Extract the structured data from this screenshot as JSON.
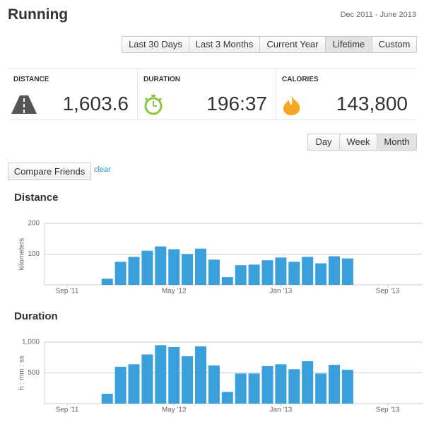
{
  "header": {
    "title": "Running",
    "date_range": "Dec 2011 - June 2013"
  },
  "range_buttons": [
    "Last 30 Days",
    "Last 3 Months",
    "Current Year",
    "Lifetime",
    "Custom"
  ],
  "selected_range": 3,
  "stats": [
    {
      "label": "DISTANCE",
      "value": "1,603.6"
    },
    {
      "label": "DURATION",
      "value": "196:37"
    },
    {
      "label": "CALORIES",
      "value": "143,800"
    }
  ],
  "interval_buttons": [
    "Day",
    "Week",
    "Month"
  ],
  "selected_interval": 2,
  "compare_button": "Compare Friends",
  "clear_link": "clear",
  "chart_data": [
    {
      "type": "bar",
      "title": "Distance",
      "y_label": "kilometers",
      "color": "#3aa0dc",
      "categories": [
        "Sep '11",
        null,
        null,
        null,
        null,
        null,
        null,
        null,
        "May '12",
        null,
        null,
        null,
        null,
        null,
        null,
        null,
        "Jan '13",
        null,
        null,
        null,
        null,
        null,
        null,
        null,
        "Sep '13"
      ],
      "values": [
        null,
        null,
        null,
        20,
        75,
        91,
        111,
        125,
        116,
        100,
        118,
        82,
        25,
        64,
        66,
        80,
        89,
        75,
        91,
        70,
        93,
        86,
        null,
        null,
        null
      ],
      "ylim": [
        0,
        200
      ],
      "yticks": [
        100,
        200
      ],
      "grid": true
    },
    {
      "type": "bar",
      "title": "Duration",
      "y_label": "h : mm : ss",
      "color": "#3aa0dc",
      "categories": [
        "Sep '11",
        null,
        null,
        null,
        null,
        null,
        null,
        null,
        "May '12",
        null,
        null,
        null,
        null,
        null,
        null,
        null,
        "Jan '13",
        null,
        null,
        null,
        null,
        null,
        null,
        null,
        "Sep '13"
      ],
      "values": [
        null,
        null,
        null,
        160,
        600,
        640,
        800,
        950,
        920,
        770,
        930,
        620,
        190,
        490,
        490,
        610,
        640,
        560,
        690,
        490,
        630,
        550,
        null,
        null,
        null
      ],
      "ylim": [
        0,
        1000
      ],
      "yticks": [
        500,
        {
          "value": 1000,
          "label": "1,000"
        }
      ],
      "grid": true
    }
  ]
}
